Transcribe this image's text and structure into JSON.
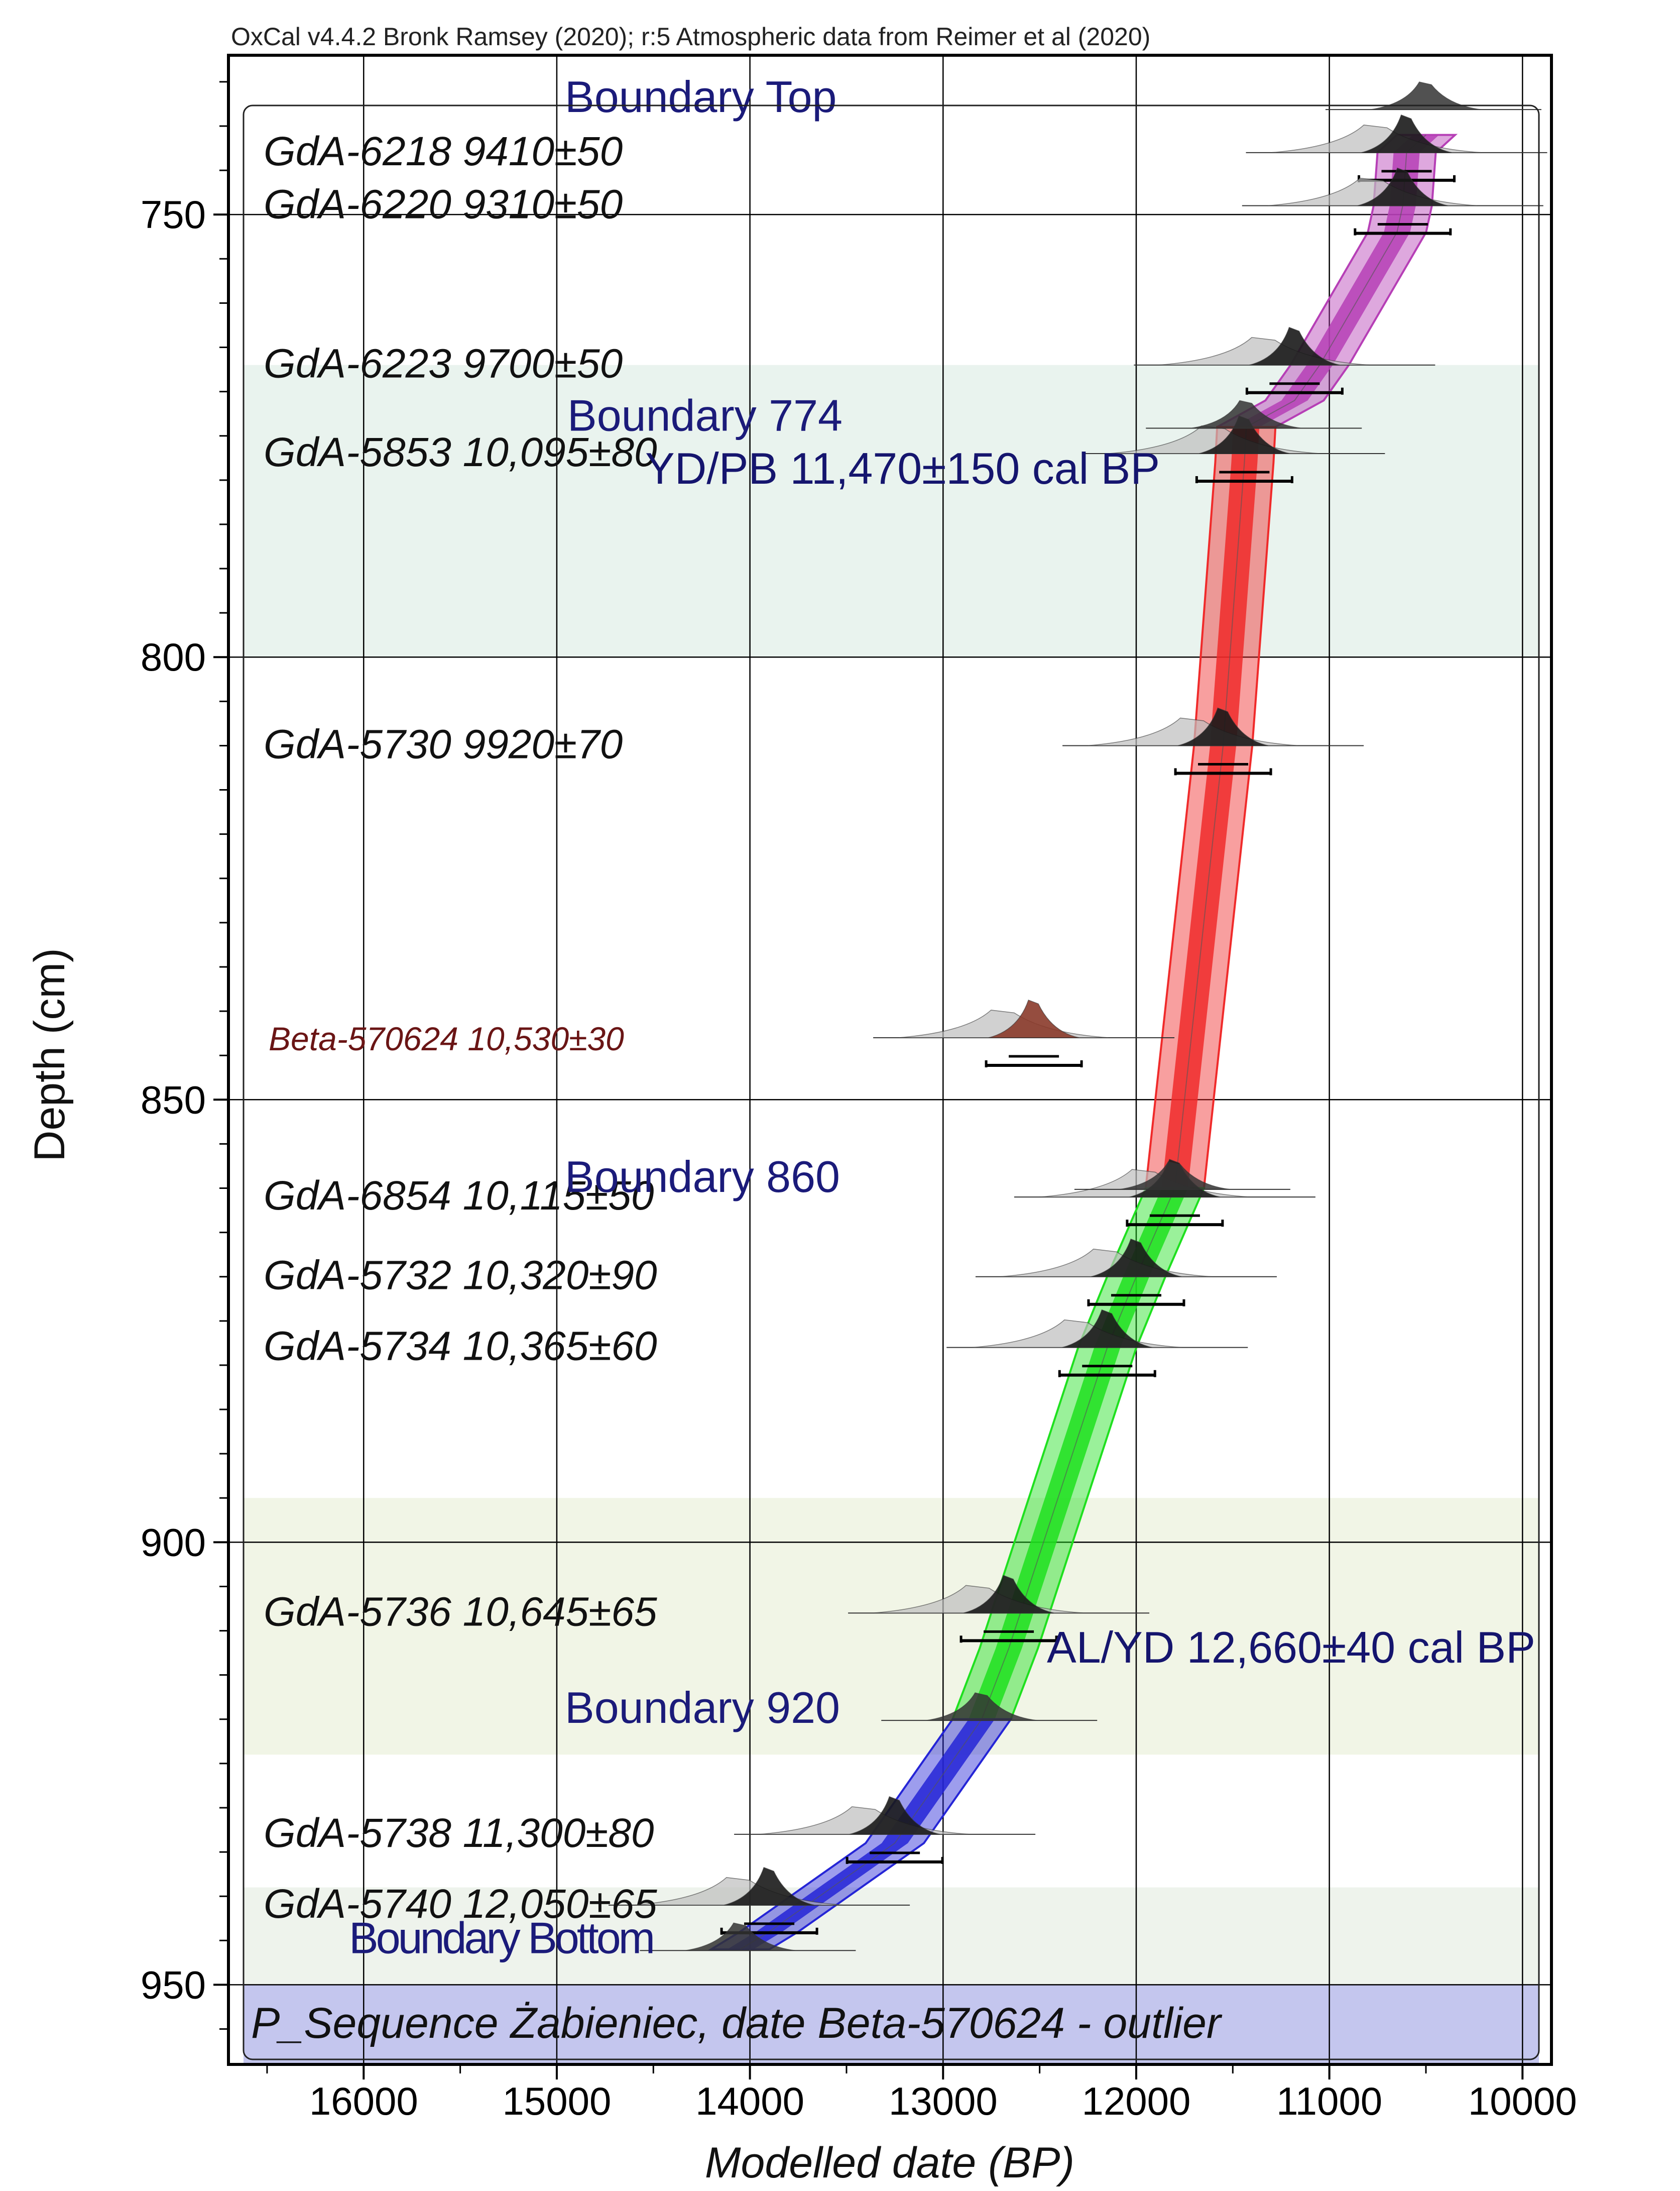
{
  "chart_data": {
    "type": "oxcal-age-depth-model",
    "header": "OxCal v4.4.2 Bronk Ramsey (2020); r:5 Atmospheric data from Reimer et al (2020)",
    "xlabel": "Modelled date (BP)",
    "ylabel": "Depth (cm)",
    "x_ticks": [
      16000,
      15000,
      14000,
      13000,
      12000,
      11000,
      10000
    ],
    "y_ticks": [
      750,
      800,
      850,
      900,
      950
    ],
    "xlim": [
      16700,
      9850
    ],
    "ylim": [
      732,
      959
    ],
    "footer_label": "P_Sequence Żabieniec, date Beta-570624 - outlier",
    "background_bands": [
      {
        "from": 767,
        "to": 800,
        "color": "#e9f3ee"
      },
      {
        "from": 895,
        "to": 924,
        "color": "#f1f5e6"
      },
      {
        "from": 939,
        "to": 950,
        "color": "#eef3ec"
      },
      {
        "from": 950,
        "to": 959,
        "color": "#c4c6ee"
      }
    ],
    "sequence_segments": [
      {
        "name": "Boundary Top to Boundary 774",
        "color": "#b63fb6",
        "points": [
          [
            10500,
            741
          ],
          [
            10600,
            743
          ],
          [
            10620,
            749
          ],
          [
            10650,
            752
          ],
          [
            11050,
            767
          ],
          [
            11180,
            771
          ],
          [
            11430,
            774
          ]
        ]
      },
      {
        "name": "Boundary 774 to Boundary 860",
        "color": "#f02a2a",
        "points": [
          [
            11430,
            774
          ],
          [
            11440,
            778
          ],
          [
            11550,
            810
          ],
          [
            11800,
            860
          ]
        ]
      },
      {
        "name": "Boundary 860 to Boundary 920",
        "color": "#1fe01f",
        "points": [
          [
            11800,
            860
          ],
          [
            12000,
            870
          ],
          [
            12150,
            878
          ],
          [
            12660,
            912
          ],
          [
            12800,
            920
          ]
        ]
      },
      {
        "name": "Boundary 920 to Boundary Bottom",
        "color": "#2525d6",
        "points": [
          [
            12800,
            920
          ],
          [
            13250,
            934
          ],
          [
            13900,
            944
          ],
          [
            14050,
            946
          ]
        ]
      }
    ],
    "samples": [
      {
        "label": "GdA-6218 9410±50",
        "depth": 743,
        "modelled": 10600,
        "color": "#111111"
      },
      {
        "label": "GdA-6220 9310±50",
        "depth": 749,
        "modelled": 10620,
        "color": "#111111"
      },
      {
        "label": "GdA-6223 9700±50",
        "depth": 767,
        "modelled": 11180,
        "color": "#111111"
      },
      {
        "label": "GdA-5853 10,095±80",
        "depth": 777,
        "modelled": 11440,
        "color": "#111111"
      },
      {
        "label": "GdA-5730 9920±70",
        "depth": 810,
        "modelled": 11550,
        "color": "#111111"
      },
      {
        "label": "Beta-570624 10,530±30",
        "depth": 843,
        "modelled": 12530,
        "color": "#6a1515"
      },
      {
        "label": "GdA-6854 10,115±50",
        "depth": 861,
        "modelled": 11800,
        "color": "#111111"
      },
      {
        "label": "GdA-5732 10,320±90",
        "depth": 870,
        "modelled": 12000,
        "color": "#111111"
      },
      {
        "label": "GdA-5734 10,365±60",
        "depth": 878,
        "modelled": 12150,
        "color": "#111111"
      },
      {
        "label": "GdA-5736 10,645±65",
        "depth": 908,
        "modelled": 12660,
        "color": "#111111"
      },
      {
        "label": "GdA-5738 11,300±80",
        "depth": 933,
        "modelled": 13250,
        "color": "#111111"
      },
      {
        "label": "GdA-5740 12,050±65",
        "depth": 941,
        "modelled": 13900,
        "color": "#111111"
      }
    ],
    "boundaries": [
      {
        "label": "Boundary Top",
        "depth": 737,
        "modelled": 10500
      },
      {
        "label": "Boundary 774",
        "depth": 773,
        "modelled": 11430
      },
      {
        "label": "Boundary 860",
        "depth": 859,
        "modelled": 11800
      },
      {
        "label": "Boundary 920",
        "depth": 919,
        "modelled": 12800
      },
      {
        "label": "Boundary Bottom",
        "depth": 945,
        "modelled": 14050
      }
    ],
    "annotations": [
      {
        "label": "YD/PB 11,470±150 cal BP",
        "depth": 779,
        "date": 11470,
        "color": "#15156e"
      },
      {
        "label": "AL/YD 12,660±40 cal BP",
        "depth": 912,
        "date": 12660,
        "color": "#15156e"
      }
    ]
  }
}
